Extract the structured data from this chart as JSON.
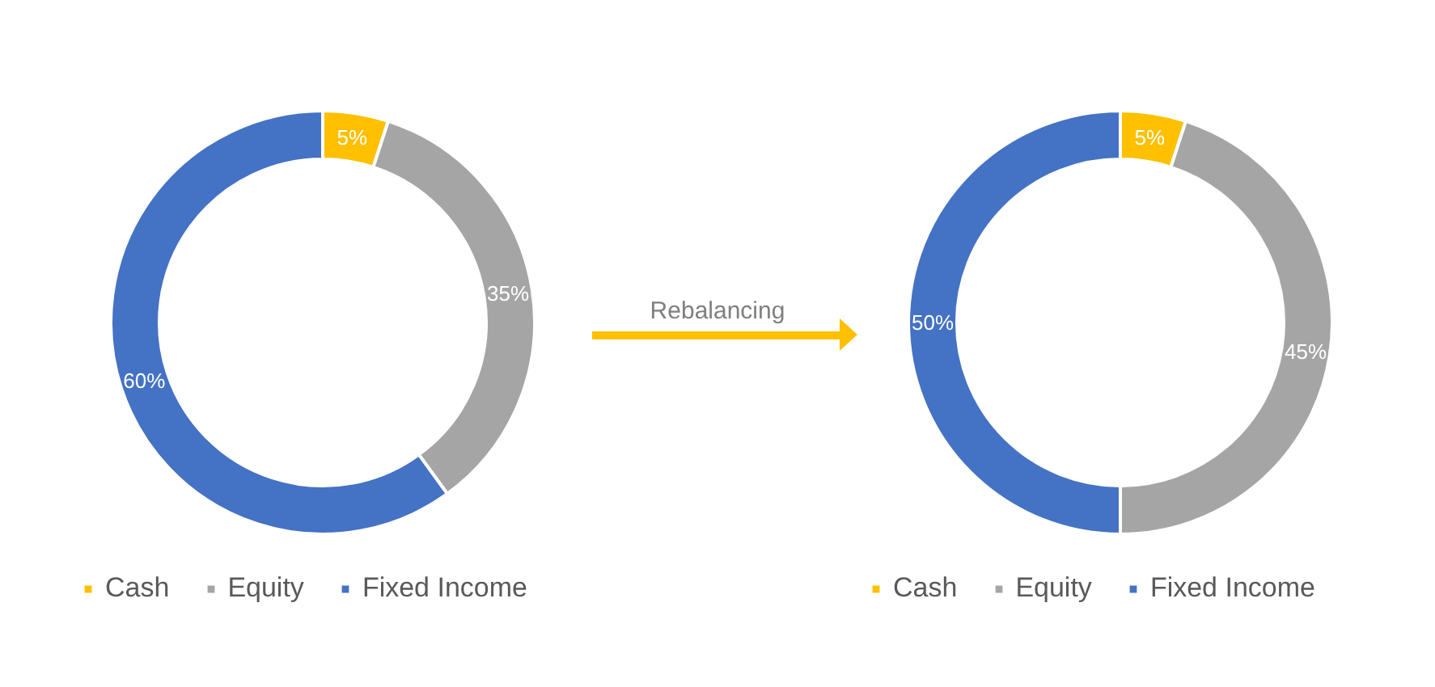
{
  "chart_data": [
    {
      "type": "donut",
      "categories": [
        "Cash",
        "Equity",
        "Fixed Income"
      ],
      "values": [
        5,
        35,
        60
      ],
      "colors": [
        "#ffc000",
        "#a5a5a5",
        "#4472c4"
      ],
      "value_labels": [
        "5%",
        "35%",
        "60%"
      ],
      "legend": "bottom"
    },
    {
      "type": "other",
      "annotations": [
        "Rebalancing"
      ]
    },
    {
      "type": "donut",
      "categories": [
        "Cash",
        "Equity",
        "Fixed Income"
      ],
      "values": [
        5,
        45,
        50
      ],
      "colors": [
        "#ffc000",
        "#a5a5a5",
        "#4472c4"
      ],
      "value_labels": [
        "5%",
        "45%",
        "50%"
      ],
      "legend": "bottom"
    }
  ]
}
